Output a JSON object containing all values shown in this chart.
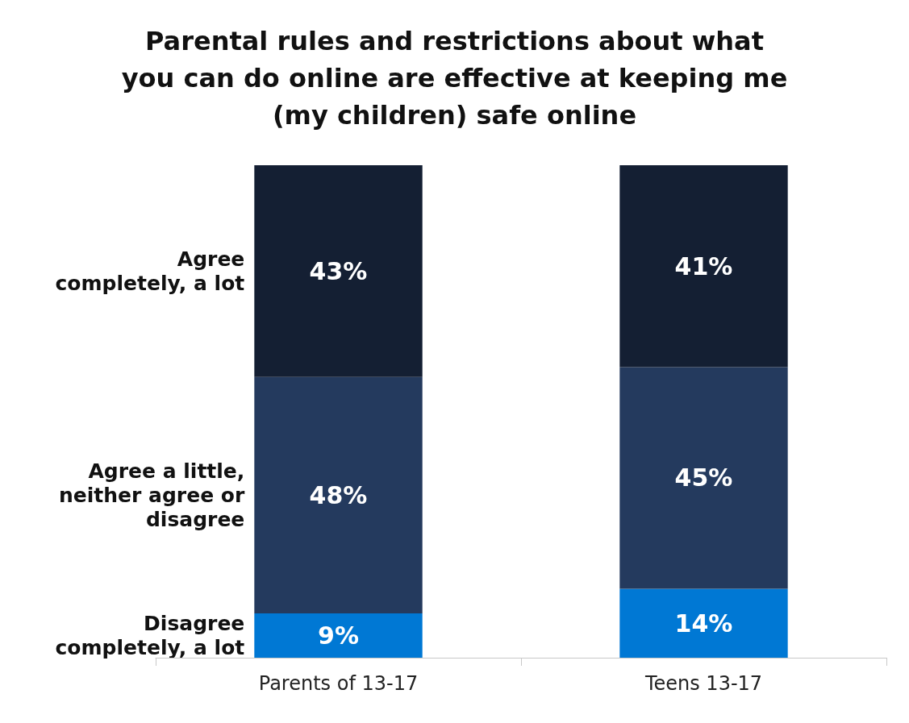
{
  "chart_data": {
    "type": "bar",
    "title": "Parental rules and restrictions about what\nyou can do online are effective at keeping me\n(my children) safe online",
    "categories": [
      "Parents of 13-17",
      "Teens 13-17"
    ],
    "stacked": true,
    "legend": "left",
    "series": [
      {
        "name": "Disagree\ncompletely, a lot",
        "color": "#0078d4",
        "values": [
          9,
          14
        ],
        "value_labels": [
          "9%",
          "14%"
        ]
      },
      {
        "name": "Agree a little,\nneither agree or\ndisagree",
        "color": "#243a5e",
        "values": [
          48,
          45
        ],
        "value_labels": [
          "48%",
          "45%"
        ]
      },
      {
        "name": "Agree\ncompletely, a lot",
        "color": "#141f33",
        "values": [
          43,
          41
        ],
        "value_labels": [
          "43%",
          "41%"
        ]
      }
    ]
  }
}
